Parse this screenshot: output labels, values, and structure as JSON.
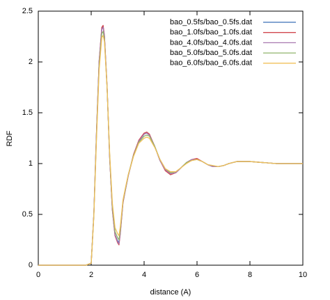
{
  "chart_data": {
    "type": "line",
    "xlabel": "distance (A)",
    "ylabel": "RDF",
    "x": [
      0,
      1,
      1.8,
      2.0,
      2.1,
      2.2,
      2.3,
      2.4,
      2.45,
      2.5,
      2.6,
      2.7,
      2.8,
      2.9,
      3.0,
      3.05,
      3.1,
      3.2,
      3.3,
      3.4,
      3.6,
      3.8,
      4.0,
      4.1,
      4.2,
      4.4,
      4.6,
      4.8,
      5.0,
      5.2,
      5.4,
      5.6,
      5.8,
      6.0,
      6.2,
      6.4,
      6.6,
      6.8,
      7.0,
      7.2,
      7.5,
      8.0,
      8.5,
      9.0,
      9.5,
      10
    ],
    "series": [
      {
        "name": "bao_0.5fs/bao_0.5fs.dat",
        "color": "#3b6fb6",
        "values": [
          0,
          0,
          0,
          0.02,
          0.5,
          1.3,
          2.0,
          2.33,
          2.35,
          2.25,
          1.75,
          1.05,
          0.55,
          0.3,
          0.24,
          0.22,
          0.33,
          0.62,
          0.75,
          0.88,
          1.08,
          1.22,
          1.29,
          1.3,
          1.28,
          1.17,
          1.03,
          0.94,
          0.9,
          0.91,
          0.96,
          1.01,
          1.04,
          1.04,
          1.02,
          0.99,
          0.97,
          0.97,
          0.98,
          1.0,
          1.02,
          1.02,
          1.01,
          1.0,
          1.0,
          1.0
        ]
      },
      {
        "name": "bao_1.0fs/bao_1.0fs.dat",
        "color": "#d1474f",
        "values": [
          0,
          0,
          0,
          0.02,
          0.5,
          1.31,
          2.01,
          2.34,
          2.36,
          2.26,
          1.76,
          1.05,
          0.54,
          0.29,
          0.22,
          0.2,
          0.31,
          0.61,
          0.75,
          0.88,
          1.09,
          1.23,
          1.3,
          1.31,
          1.29,
          1.17,
          1.03,
          0.93,
          0.89,
          0.91,
          0.96,
          1.01,
          1.04,
          1.05,
          1.02,
          0.99,
          0.97,
          0.97,
          0.98,
          1.0,
          1.02,
          1.02,
          1.01,
          1.0,
          1.0,
          1.0
        ]
      },
      {
        "name": "bao_4.0fs/bao_4.0fs.dat",
        "color": "#a878b0",
        "values": [
          0,
          0,
          0,
          0.02,
          0.5,
          1.3,
          2.0,
          2.32,
          2.34,
          2.25,
          1.76,
          1.05,
          0.55,
          0.3,
          0.23,
          0.21,
          0.32,
          0.62,
          0.75,
          0.88,
          1.08,
          1.22,
          1.29,
          1.3,
          1.28,
          1.17,
          1.03,
          0.94,
          0.9,
          0.91,
          0.96,
          1.01,
          1.04,
          1.04,
          1.02,
          0.99,
          0.97,
          0.97,
          0.98,
          1.0,
          1.02,
          1.02,
          1.01,
          1.0,
          1.0,
          1.0
        ]
      },
      {
        "name": "bao_5.0fs/bao_5.0fs.dat",
        "color": "#8fb36a",
        "values": [
          0,
          0,
          0,
          0.02,
          0.49,
          1.27,
          1.96,
          2.28,
          2.3,
          2.22,
          1.75,
          1.07,
          0.58,
          0.33,
          0.27,
          0.25,
          0.35,
          0.63,
          0.76,
          0.89,
          1.08,
          1.21,
          1.27,
          1.28,
          1.27,
          1.17,
          1.04,
          0.95,
          0.91,
          0.92,
          0.96,
          1.01,
          1.03,
          1.04,
          1.02,
          0.99,
          0.98,
          0.97,
          0.98,
          1.0,
          1.02,
          1.02,
          1.01,
          1.0,
          1.0,
          1.0
        ]
      },
      {
        "name": "bao_6.0fs/bao_6.0fs.dat",
        "color": "#f0c05a",
        "values": [
          0,
          0,
          0,
          0.02,
          0.48,
          1.24,
          1.92,
          2.24,
          2.26,
          2.2,
          1.75,
          1.09,
          0.61,
          0.37,
          0.31,
          0.29,
          0.38,
          0.64,
          0.77,
          0.89,
          1.07,
          1.2,
          1.25,
          1.26,
          1.25,
          1.16,
          1.04,
          0.95,
          0.92,
          0.92,
          0.96,
          1.0,
          1.03,
          1.04,
          1.02,
          0.99,
          0.98,
          0.97,
          0.98,
          1.0,
          1.02,
          1.02,
          1.01,
          1.0,
          1.0,
          1.0
        ]
      }
    ],
    "xlim": [
      0,
      10
    ],
    "xticks": [
      0,
      2,
      4,
      6,
      8,
      10
    ],
    "ylim": [
      0,
      2.5
    ],
    "yticks": [
      0,
      0.5,
      1,
      1.5,
      2,
      2.5
    ],
    "grid": false,
    "legend": "top-right"
  }
}
